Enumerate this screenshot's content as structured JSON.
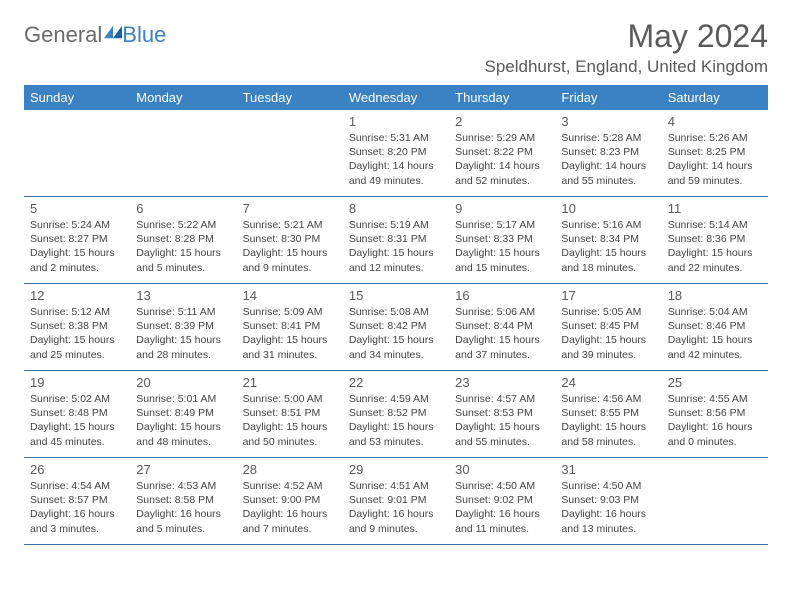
{
  "brand": {
    "part1": "General",
    "part2": "Blue"
  },
  "title": "May 2024",
  "location": "Speldhurst, England, United Kingdom",
  "colors": {
    "header_bg": "#3b82c4",
    "header_fg": "#ffffff",
    "rule": "#3b6fa0",
    "text": "#444444",
    "title": "#5a5a5a"
  },
  "dayNames": [
    "Sunday",
    "Monday",
    "Tuesday",
    "Wednesday",
    "Thursday",
    "Friday",
    "Saturday"
  ],
  "weeks": [
    [
      {
        "n": "",
        "sr": "",
        "ss": "",
        "dl": ""
      },
      {
        "n": "",
        "sr": "",
        "ss": "",
        "dl": ""
      },
      {
        "n": "",
        "sr": "",
        "ss": "",
        "dl": ""
      },
      {
        "n": "1",
        "sr": "Sunrise: 5:31 AM",
        "ss": "Sunset: 8:20 PM",
        "dl": "Daylight: 14 hours and 49 minutes."
      },
      {
        "n": "2",
        "sr": "Sunrise: 5:29 AM",
        "ss": "Sunset: 8:22 PM",
        "dl": "Daylight: 14 hours and 52 minutes."
      },
      {
        "n": "3",
        "sr": "Sunrise: 5:28 AM",
        "ss": "Sunset: 8:23 PM",
        "dl": "Daylight: 14 hours and 55 minutes."
      },
      {
        "n": "4",
        "sr": "Sunrise: 5:26 AM",
        "ss": "Sunset: 8:25 PM",
        "dl": "Daylight: 14 hours and 59 minutes."
      }
    ],
    [
      {
        "n": "5",
        "sr": "Sunrise: 5:24 AM",
        "ss": "Sunset: 8:27 PM",
        "dl": "Daylight: 15 hours and 2 minutes."
      },
      {
        "n": "6",
        "sr": "Sunrise: 5:22 AM",
        "ss": "Sunset: 8:28 PM",
        "dl": "Daylight: 15 hours and 5 minutes."
      },
      {
        "n": "7",
        "sr": "Sunrise: 5:21 AM",
        "ss": "Sunset: 8:30 PM",
        "dl": "Daylight: 15 hours and 9 minutes."
      },
      {
        "n": "8",
        "sr": "Sunrise: 5:19 AM",
        "ss": "Sunset: 8:31 PM",
        "dl": "Daylight: 15 hours and 12 minutes."
      },
      {
        "n": "9",
        "sr": "Sunrise: 5:17 AM",
        "ss": "Sunset: 8:33 PM",
        "dl": "Daylight: 15 hours and 15 minutes."
      },
      {
        "n": "10",
        "sr": "Sunrise: 5:16 AM",
        "ss": "Sunset: 8:34 PM",
        "dl": "Daylight: 15 hours and 18 minutes."
      },
      {
        "n": "11",
        "sr": "Sunrise: 5:14 AM",
        "ss": "Sunset: 8:36 PM",
        "dl": "Daylight: 15 hours and 22 minutes."
      }
    ],
    [
      {
        "n": "12",
        "sr": "Sunrise: 5:12 AM",
        "ss": "Sunset: 8:38 PM",
        "dl": "Daylight: 15 hours and 25 minutes."
      },
      {
        "n": "13",
        "sr": "Sunrise: 5:11 AM",
        "ss": "Sunset: 8:39 PM",
        "dl": "Daylight: 15 hours and 28 minutes."
      },
      {
        "n": "14",
        "sr": "Sunrise: 5:09 AM",
        "ss": "Sunset: 8:41 PM",
        "dl": "Daylight: 15 hours and 31 minutes."
      },
      {
        "n": "15",
        "sr": "Sunrise: 5:08 AM",
        "ss": "Sunset: 8:42 PM",
        "dl": "Daylight: 15 hours and 34 minutes."
      },
      {
        "n": "16",
        "sr": "Sunrise: 5:06 AM",
        "ss": "Sunset: 8:44 PM",
        "dl": "Daylight: 15 hours and 37 minutes."
      },
      {
        "n": "17",
        "sr": "Sunrise: 5:05 AM",
        "ss": "Sunset: 8:45 PM",
        "dl": "Daylight: 15 hours and 39 minutes."
      },
      {
        "n": "18",
        "sr": "Sunrise: 5:04 AM",
        "ss": "Sunset: 8:46 PM",
        "dl": "Daylight: 15 hours and 42 minutes."
      }
    ],
    [
      {
        "n": "19",
        "sr": "Sunrise: 5:02 AM",
        "ss": "Sunset: 8:48 PM",
        "dl": "Daylight: 15 hours and 45 minutes."
      },
      {
        "n": "20",
        "sr": "Sunrise: 5:01 AM",
        "ss": "Sunset: 8:49 PM",
        "dl": "Daylight: 15 hours and 48 minutes."
      },
      {
        "n": "21",
        "sr": "Sunrise: 5:00 AM",
        "ss": "Sunset: 8:51 PM",
        "dl": "Daylight: 15 hours and 50 minutes."
      },
      {
        "n": "22",
        "sr": "Sunrise: 4:59 AM",
        "ss": "Sunset: 8:52 PM",
        "dl": "Daylight: 15 hours and 53 minutes."
      },
      {
        "n": "23",
        "sr": "Sunrise: 4:57 AM",
        "ss": "Sunset: 8:53 PM",
        "dl": "Daylight: 15 hours and 55 minutes."
      },
      {
        "n": "24",
        "sr": "Sunrise: 4:56 AM",
        "ss": "Sunset: 8:55 PM",
        "dl": "Daylight: 15 hours and 58 minutes."
      },
      {
        "n": "25",
        "sr": "Sunrise: 4:55 AM",
        "ss": "Sunset: 8:56 PM",
        "dl": "Daylight: 16 hours and 0 minutes."
      }
    ],
    [
      {
        "n": "26",
        "sr": "Sunrise: 4:54 AM",
        "ss": "Sunset: 8:57 PM",
        "dl": "Daylight: 16 hours and 3 minutes."
      },
      {
        "n": "27",
        "sr": "Sunrise: 4:53 AM",
        "ss": "Sunset: 8:58 PM",
        "dl": "Daylight: 16 hours and 5 minutes."
      },
      {
        "n": "28",
        "sr": "Sunrise: 4:52 AM",
        "ss": "Sunset: 9:00 PM",
        "dl": "Daylight: 16 hours and 7 minutes."
      },
      {
        "n": "29",
        "sr": "Sunrise: 4:51 AM",
        "ss": "Sunset: 9:01 PM",
        "dl": "Daylight: 16 hours and 9 minutes."
      },
      {
        "n": "30",
        "sr": "Sunrise: 4:50 AM",
        "ss": "Sunset: 9:02 PM",
        "dl": "Daylight: 16 hours and 11 minutes."
      },
      {
        "n": "31",
        "sr": "Sunrise: 4:50 AM",
        "ss": "Sunset: 9:03 PM",
        "dl": "Daylight: 16 hours and 13 minutes."
      },
      {
        "n": "",
        "sr": "",
        "ss": "",
        "dl": ""
      }
    ]
  ]
}
